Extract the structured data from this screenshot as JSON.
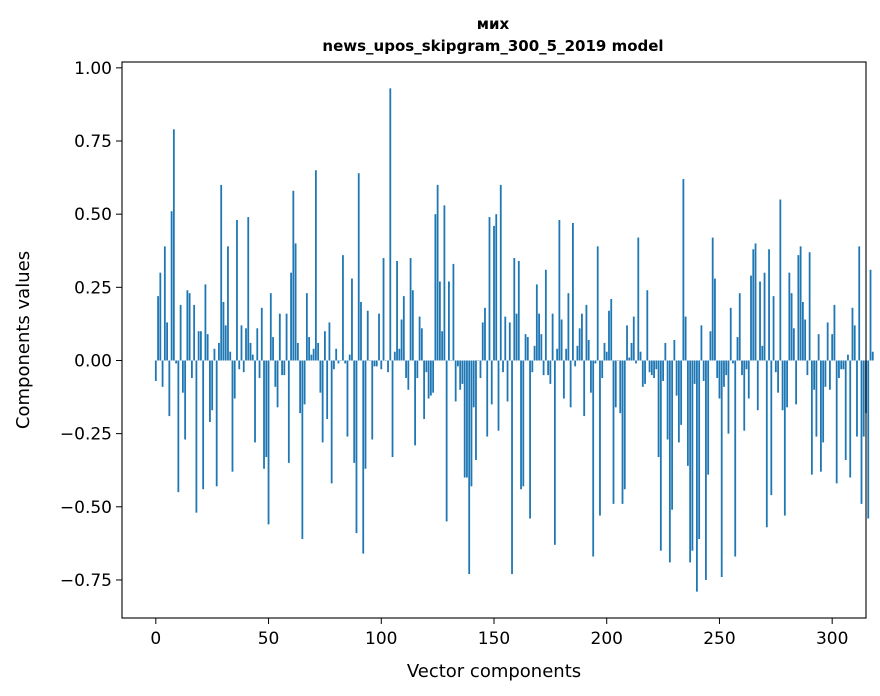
{
  "chart_data": {
    "type": "bar",
    "title_line1": "мих",
    "title_line2": "news_upos_skipgram_300_5_2019 model",
    "xlabel": "Vector components",
    "ylabel": "Components values",
    "xlim": [
      -15,
      315
    ],
    "ylim": [
      -0.88,
      1.02
    ],
    "xticks": [
      0,
      50,
      100,
      150,
      200,
      250,
      300
    ],
    "yticks": [
      -0.75,
      -0.5,
      -0.25,
      0.0,
      0.25,
      0.5,
      0.75,
      1.0
    ],
    "xtick_labels": [
      "0",
      "50",
      "100",
      "150",
      "200",
      "250",
      "300"
    ],
    "ytick_labels": [
      "−0.75",
      "−0.50",
      "−0.25",
      "0.00",
      "0.25",
      "0.50",
      "0.75",
      "1.00"
    ],
    "bar_color": "#1f77b4",
    "values": [
      -0.07,
      0.22,
      0.3,
      -0.09,
      0.39,
      0.13,
      -0.19,
      0.51,
      0.79,
      -0.01,
      -0.45,
      0.19,
      -0.11,
      -0.27,
      0.24,
      0.23,
      -0.06,
      0.19,
      -0.52,
      0.1,
      0.1,
      -0.44,
      0.26,
      0.09,
      -0.21,
      -0.17,
      0.04,
      -0.43,
      0.06,
      0.6,
      0.2,
      0.12,
      0.39,
      0.03,
      -0.38,
      -0.13,
      0.48,
      -0.03,
      0.12,
      -0.04,
      0.11,
      0.49,
      0.06,
      0.02,
      -0.28,
      0.11,
      -0.06,
      0.18,
      -0.37,
      -0.33,
      -0.56,
      0.23,
      0.08,
      -0.09,
      -0.16,
      0.16,
      -0.05,
      -0.05,
      0.16,
      -0.35,
      0.3,
      0.58,
      0.4,
      0.06,
      -0.18,
      -0.61,
      -0.15,
      0.23,
      0.08,
      0.02,
      0.04,
      0.65,
      0.06,
      -0.11,
      -0.28,
      0.1,
      -0.2,
      0.13,
      -0.42,
      -0.03,
      0.04,
      -0.01,
      0.0,
      0.36,
      -0.01,
      -0.26,
      0.02,
      0.28,
      -0.35,
      -0.59,
      0.64,
      0.2,
      -0.66,
      -0.37,
      0.17,
      0.0,
      -0.27,
      -0.02,
      -0.02,
      0.16,
      -0.03,
      0.35,
      0.0,
      -0.04,
      0.93,
      -0.33,
      0.03,
      0.34,
      0.04,
      0.14,
      0.22,
      -0.06,
      -0.1,
      0.35,
      0.24,
      -0.29,
      -0.06,
      0.15,
      0.11,
      -0.2,
      -0.04,
      -0.13,
      -0.12,
      -0.11,
      0.5,
      0.6,
      0.27,
      0.1,
      0.53,
      -0.55,
      0.27,
      0.0,
      0.33,
      -0.14,
      -0.02,
      -0.1,
      -0.08,
      -0.4,
      -0.4,
      -0.73,
      -0.43,
      -0.16,
      -0.34,
      0.0,
      -0.06,
      0.13,
      0.18,
      -0.26,
      0.49,
      -0.15,
      0.46,
      0.5,
      -0.24,
      0.6,
      -0.04,
      0.15,
      -0.14,
      0.13,
      -0.73,
      0.35,
      0.16,
      0.34,
      -0.44,
      -0.43,
      0.09,
      0.08,
      -0.54,
      -0.04,
      0.05,
      0.26,
      0.16,
      0.09,
      -0.05,
      0.31,
      -0.05,
      -0.08,
      0.16,
      -0.63,
      0.04,
      0.48,
      0.14,
      -0.13,
      0.04,
      0.23,
      -0.16,
      0.47,
      -0.02,
      0.05,
      0.11,
      0.16,
      -0.19,
      0.19,
      0.07,
      -0.11,
      -0.67,
      -0.01,
      0.39,
      -0.53,
      -0.06,
      0.06,
      0.03,
      0.17,
      0.21,
      -0.49,
      -0.16,
      0.0,
      -0.18,
      -0.49,
      -0.44,
      0.12,
      0.01,
      0.06,
      0.15,
      -0.01,
      0.42,
      0.03,
      -0.09,
      -0.08,
      0.24,
      -0.04,
      -0.05,
      -0.06,
      -0.03,
      -0.33,
      -0.65,
      -0.07,
      0.06,
      -0.27,
      -0.69,
      -0.51,
      0.07,
      -0.12,
      -0.28,
      -0.22,
      0.62,
      0.15,
      -0.36,
      -0.69,
      -0.65,
      -0.08,
      -0.79,
      -0.61,
      0.12,
      -0.07,
      -0.75,
      -0.39,
      0.1,
      0.42,
      0.28,
      -0.06,
      -0.13,
      -0.74,
      -0.09,
      -0.05,
      -0.25,
      0.18,
      -0.01,
      -0.67,
      0.08,
      0.23,
      -0.05,
      -0.24,
      -0.03,
      -0.13,
      0.29,
      0.38,
      0.4,
      -0.17,
      0.27,
      0.05,
      0.3,
      -0.57,
      0.38,
      -0.46,
      0.22,
      -0.04,
      -0.11,
      0.55,
      -0.17,
      -0.53,
      -0.16,
      0.3,
      0.23,
      0.11,
      -0.15,
      0.36,
      0.39,
      0.2,
      0.14,
      -0.05,
      0.37,
      -0.39,
      -0.1,
      -0.26,
      0.09,
      -0.38,
      -0.28,
      -0.09,
      0.13,
      -0.1,
      0.09,
      0.19,
      -0.42,
      -0.06,
      -0.03,
      -0.03,
      -0.34,
      0.02,
      -0.4,
      0.18,
      0.12,
      -0.26,
      0.39,
      -0.49,
      -0.26,
      -0.18,
      -0.54,
      0.31,
      0.03
    ]
  }
}
